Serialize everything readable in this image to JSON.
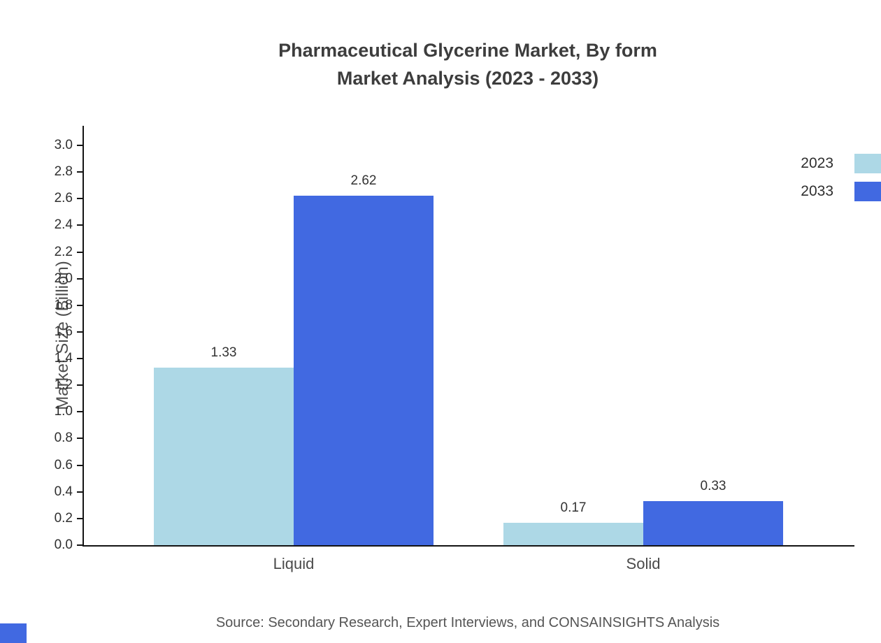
{
  "title": {
    "line1": "Pharmaceutical Glycerine Market, By form",
    "line2": "Market Analysis (2023 - 2033)"
  },
  "source_note": "Source: Secondary Research, Expert Interviews, and CONSAINSIGHTS Analysis",
  "colors": {
    "series_2023": "#add8e6",
    "series_2033": "#4169e1",
    "axis": "#141414",
    "title_text": "#3d3d3d",
    "watermark": "#4169e1"
  },
  "chart_data": {
    "type": "bar",
    "title": "Pharmaceutical Glycerine Market, By form Market Analysis (2023 - 2033)",
    "categories": [
      "Liquid",
      "Solid"
    ],
    "series": [
      {
        "name": "2023",
        "color": "#add8e6",
        "values": [
          1.33,
          0.17
        ]
      },
      {
        "name": "2033",
        "color": "#4169e1",
        "values": [
          2.62,
          0.33
        ]
      }
    ],
    "xlabel": "",
    "ylabel": "Market Size (Billion)",
    "ylim": [
      0.0,
      3.0
    ],
    "ytick_step": 0.2,
    "ytick_format_decimals": 1,
    "value_labels": [
      [
        "1.33",
        "0.17"
      ],
      [
        "2.62",
        "0.33"
      ]
    ],
    "grid": false,
    "legend_position": "top-right"
  }
}
